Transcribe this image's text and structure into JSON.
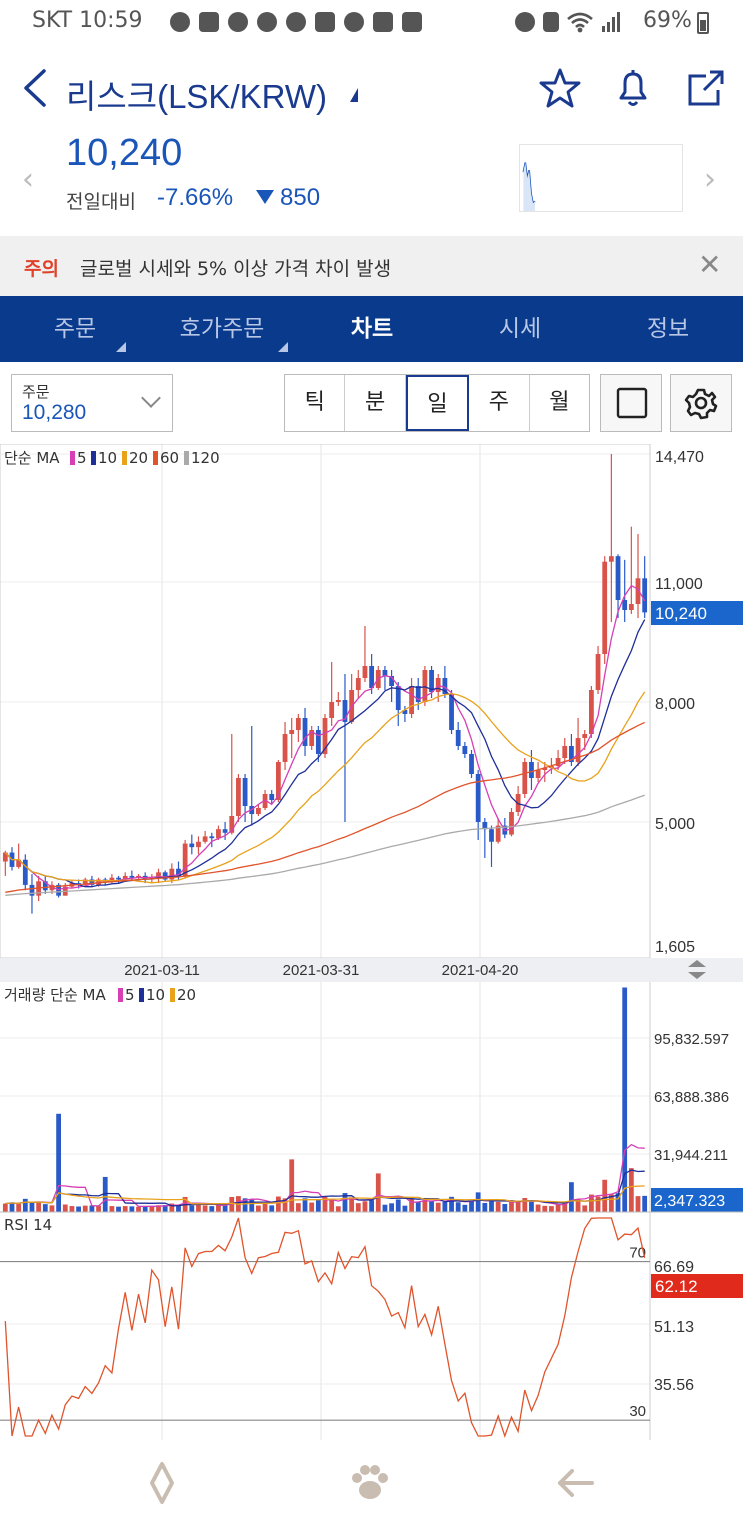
{
  "status_bar": {
    "carrier_time": "SKT 10:59",
    "battery": "69%",
    "left_icons": [
      "messenger-icon",
      "pay-icon",
      "messenger-icon",
      "twitter-icon",
      "weather-icon",
      "twitch-icon",
      "messenger-icon",
      "youtube-icon",
      "gallery-icon"
    ],
    "right_icons": [
      "alarm-icon",
      "nfc-icon",
      "wifi-icon",
      "signal-icon",
      "battery-icon"
    ]
  },
  "header": {
    "title": "리스크(LSK/KRW)",
    "price": "10,240",
    "change_label": "전일대비",
    "change_pct": "-7.66%",
    "change_abs": "850",
    "icons": [
      "back-icon",
      "star-icon",
      "bell-icon",
      "share-icon"
    ]
  },
  "notice": {
    "tag": "주의",
    "text": "글로벌 시세와 5% 이상 가격 차이 발생"
  },
  "tabs": [
    {
      "label": "주문",
      "sub": true,
      "active": false
    },
    {
      "label": "호가주문",
      "sub": true,
      "active": false
    },
    {
      "label": "차트",
      "sub": false,
      "active": true
    },
    {
      "label": "시세",
      "sub": false,
      "active": false
    },
    {
      "label": "정보",
      "sub": false,
      "active": false
    }
  ],
  "toolbar": {
    "order_label": "주문",
    "order_value": "10,280",
    "periods": [
      "틱",
      "분",
      "일",
      "주",
      "월"
    ],
    "active_period": "일"
  },
  "chart_data": [
    {
      "type": "candlestick",
      "legend_prefix": "단순 MA",
      "legend": [
        {
          "label": "5",
          "color": "#d63fb5"
        },
        {
          "label": "10",
          "color": "#1f2f99"
        },
        {
          "label": "20",
          "color": "#e8a21c"
        },
        {
          "label": "60",
          "color": "#e0542b"
        },
        {
          "label": "120",
          "color": "#aaaaaa"
        }
      ],
      "y_ticks": [
        "14,470",
        "11,000",
        "8,000",
        "5,000",
        "1,605"
      ],
      "current_price_label": "10,240",
      "x_ticks": [
        "2021-03-11",
        "2021-03-31",
        "2021-04-20"
      ],
      "colors": {
        "up": "#d9534a",
        "down": "#2a5ac8"
      },
      "candles": [
        [
          3900,
          4150,
          3500,
          4200
        ],
        [
          4150,
          3750,
          3650,
          4300
        ],
        [
          3750,
          3950,
          3700,
          4400
        ],
        [
          3950,
          3250,
          3100,
          4100
        ],
        [
          3250,
          2950,
          2450,
          3550
        ],
        [
          2950,
          3350,
          2800,
          3500
        ],
        [
          3350,
          3100,
          3000,
          3500
        ],
        [
          3100,
          3250,
          3000,
          3350
        ],
        [
          3250,
          2950,
          2900,
          3300
        ],
        [
          2950,
          3200,
          2950,
          3300
        ],
        [
          3200,
          3300,
          3150,
          3400
        ],
        [
          3300,
          3250,
          3150,
          3400
        ],
        [
          3250,
          3400,
          3200,
          3450
        ],
        [
          3400,
          3250,
          3200,
          3500
        ],
        [
          3250,
          3400,
          3200,
          3450
        ],
        [
          3400,
          3350,
          3250,
          3450
        ],
        [
          3350,
          3450,
          3300,
          3550
        ],
        [
          3450,
          3400,
          3300,
          3500
        ],
        [
          3400,
          3500,
          3350,
          3600
        ],
        [
          3500,
          3450,
          3350,
          3650
        ],
        [
          3450,
          3500,
          3400,
          3550
        ],
        [
          3500,
          3400,
          3300,
          3600
        ],
        [
          3400,
          3450,
          3300,
          3550
        ],
        [
          3450,
          3600,
          3300,
          3700
        ],
        [
          3600,
          3400,
          3350,
          3650
        ],
        [
          3400,
          3700,
          3300,
          3850
        ],
        [
          3700,
          3500,
          3400,
          3900
        ],
        [
          3500,
          4400,
          3450,
          4500
        ],
        [
          4400,
          4300,
          4100,
          4650
        ],
        [
          4300,
          4450,
          4100,
          4600
        ],
        [
          4450,
          4600,
          4400,
          4750
        ],
        [
          4600,
          4550,
          4300,
          4700
        ],
        [
          4550,
          4800,
          4500,
          4900
        ],
        [
          4800,
          4700,
          4500,
          5000
        ],
        [
          4700,
          5150,
          4650,
          7200
        ],
        [
          5150,
          6100,
          5000,
          6200
        ],
        [
          6100,
          5400,
          5000,
          6200
        ],
        [
          5400,
          5200,
          4900,
          7400
        ],
        [
          5200,
          5350,
          5150,
          5450
        ],
        [
          5350,
          5700,
          5300,
          5800
        ],
        [
          5700,
          5550,
          5450,
          5800
        ],
        [
          5550,
          6500,
          5500,
          6550
        ],
        [
          6500,
          7200,
          6300,
          7500
        ],
        [
          7200,
          7300,
          6600,
          7600
        ],
        [
          7300,
          7600,
          7000,
          7700
        ],
        [
          7600,
          6900,
          6650,
          7850
        ],
        [
          6900,
          7300,
          6800,
          7400
        ],
        [
          7300,
          6700,
          6500,
          7400
        ],
        [
          6700,
          7600,
          6600,
          7700
        ],
        [
          7600,
          8000,
          7400,
          9000
        ],
        [
          8000,
          8050,
          7900,
          8250
        ],
        [
          8050,
          7500,
          5000,
          8700
        ],
        [
          7500,
          8300,
          7450,
          8700
        ],
        [
          8300,
          8600,
          8100,
          8800
        ],
        [
          8600,
          8900,
          8500,
          9900
        ],
        [
          8900,
          8350,
          8200,
          9200
        ],
        [
          8350,
          8800,
          8300,
          8900
        ],
        [
          8800,
          8650,
          8300,
          8900
        ],
        [
          8650,
          8400,
          8000,
          8800
        ],
        [
          8400,
          7800,
          7400,
          8500
        ],
        [
          7800,
          7700,
          7500,
          7900
        ],
        [
          7700,
          8400,
          7600,
          8600
        ],
        [
          8400,
          8000,
          7800,
          8600
        ],
        [
          8000,
          8800,
          7900,
          8900
        ],
        [
          8800,
          8250,
          8100,
          8900
        ],
        [
          8250,
          8600,
          8000,
          8700
        ],
        [
          8600,
          8200,
          8100,
          8900
        ],
        [
          8200,
          7300,
          7200,
          8300
        ],
        [
          7300,
          6900,
          6800,
          7500
        ],
        [
          6900,
          6700,
          6600,
          7000
        ],
        [
          6700,
          6200,
          6100,
          6800
        ],
        [
          6200,
          5000,
          4500,
          6300
        ],
        [
          5000,
          4800,
          4000,
          5100
        ],
        [
          4800,
          4450,
          3750,
          4900
        ],
        [
          4450,
          4900,
          4400,
          5100
        ],
        [
          4900,
          4650,
          4550,
          5100
        ],
        [
          4650,
          5250,
          4600,
          5350
        ],
        [
          5250,
          5700,
          5150,
          5900
        ],
        [
          5700,
          6500,
          5600,
          6600
        ],
        [
          6500,
          6100,
          5800,
          6800
        ],
        [
          6100,
          6300,
          6000,
          6500
        ],
        [
          6300,
          6350,
          6000,
          6500
        ],
        [
          6350,
          6400,
          6200,
          6600
        ],
        [
          6400,
          6600,
          6300,
          6800
        ],
        [
          6600,
          6900,
          6450,
          7100
        ],
        [
          6900,
          6500,
          6400,
          7200
        ],
        [
          6500,
          7100,
          6400,
          7600
        ],
        [
          7100,
          7200,
          6800,
          7300
        ],
        [
          7200,
          8300,
          7100,
          8400
        ],
        [
          8300,
          9200,
          8200,
          9400
        ],
        [
          9200,
          11550,
          8950,
          11700
        ],
        [
          11550,
          11700,
          10000,
          14470
        ],
        [
          11700,
          10550,
          10100,
          11750
        ],
        [
          10550,
          10300,
          10000,
          11600
        ],
        [
          10300,
          10450,
          10200,
          12500
        ],
        [
          10450,
          11100,
          10100,
          12300
        ],
        [
          11100,
          10240,
          10100,
          11700
        ]
      ]
    },
    {
      "type": "bar",
      "legend_prefix": "거래량 단순 MA",
      "legend": [
        {
          "label": "5",
          "color": "#d63fb5"
        },
        {
          "label": "10",
          "color": "#1f2f99"
        },
        {
          "label": "20",
          "color": "#e8a21c"
        }
      ],
      "y_ticks": [
        "95,832.597",
        "63,888.386",
        "31,944.211"
      ],
      "current_label": "2,347.323",
      "ylim": [
        0,
        130000
      ]
    },
    {
      "type": "line",
      "legend_label": "RSI 14",
      "levels": [
        "70",
        "30"
      ],
      "y_ticks": [
        "66.69",
        "51.13",
        "35.56"
      ],
      "current_label": "62.12",
      "ylim": [
        25,
        82
      ]
    }
  ],
  "bottom_nav": {
    "icons": [
      "diamond-icon",
      "paw-icon",
      "back-arrow-icon"
    ]
  }
}
